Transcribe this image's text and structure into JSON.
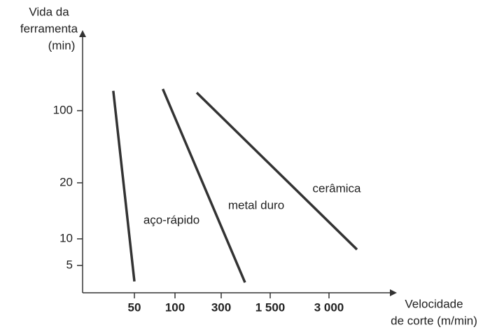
{
  "chart_data": {
    "type": "line",
    "y_label": [
      "Vida da",
      "ferramenta",
      "(min)"
    ],
    "x_label": [
      "Velocidade",
      "de corte (m/min)"
    ],
    "xticks": [
      50,
      100,
      300,
      {
        "value": 1500,
        "label": "1 500"
      },
      {
        "value": 3000,
        "label": "3 000"
      }
    ],
    "yticks": [
      5,
      10,
      20,
      100
    ],
    "color": "#333333",
    "series": [
      {
        "name": "aço-rápido",
        "x": [
          24,
          50
        ],
        "values": [
          122,
          2
        ]
      },
      {
        "name": "metal duro",
        "x": [
          85,
          883
        ],
        "values": [
          124,
          1.8
        ]
      },
      {
        "name": "cerâmica",
        "x": [
          194,
          3714
        ],
        "values": [
          120,
          8
        ]
      }
    ]
  }
}
